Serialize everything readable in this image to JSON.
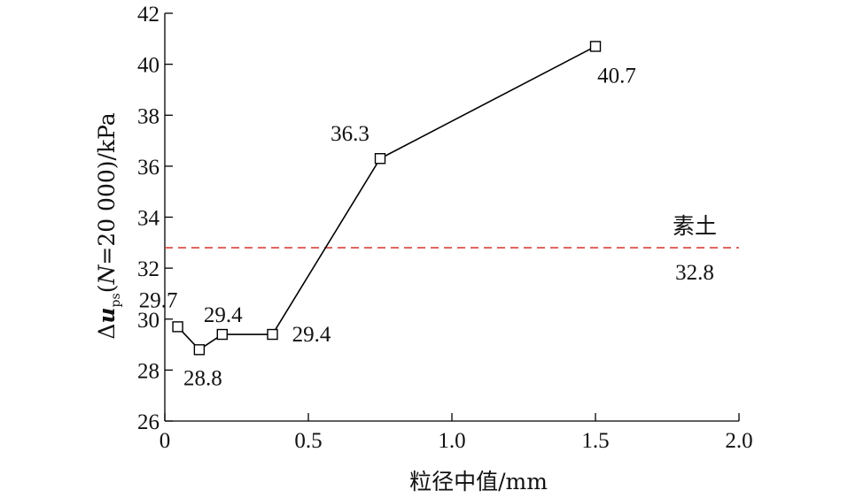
{
  "chart_data": {
    "type": "line",
    "xlabel": "粒径中值/mm",
    "ylabel": {
      "prefix": "Δ",
      "var": "u",
      "sub": "ps",
      "open": "(",
      "nvar": "N",
      "rest": "=20 000)/kPa"
    },
    "xlim": [
      0,
      2.0
    ],
    "ylim": [
      26,
      42
    ],
    "x_ticks": [
      0,
      0.5,
      1.0,
      1.5,
      2.0
    ],
    "x_tick_labels": [
      "0",
      "0.5",
      "1.0",
      "1.5",
      "2.0"
    ],
    "y_ticks": [
      26,
      28,
      30,
      32,
      34,
      36,
      38,
      40,
      42
    ],
    "y_tick_labels": [
      "26",
      "28",
      "30",
      "32",
      "34",
      "36",
      "38",
      "40",
      "42"
    ],
    "grid": false,
    "series": [
      {
        "x": [
          0.045,
          0.12,
          0.2,
          0.375,
          0.75,
          1.5
        ],
        "y": [
          29.7,
          28.8,
          29.4,
          29.4,
          36.3,
          40.7
        ],
        "labels": [
          "29.7",
          "28.8",
          "29.4",
          "29.4",
          "36.3",
          "40.7"
        ],
        "marker": "square",
        "color": "#000000"
      }
    ],
    "reference_line": {
      "y": 32.8,
      "label": "素土",
      "value_label": "32.8",
      "color": "#d9413c",
      "style": "dashed"
    }
  }
}
